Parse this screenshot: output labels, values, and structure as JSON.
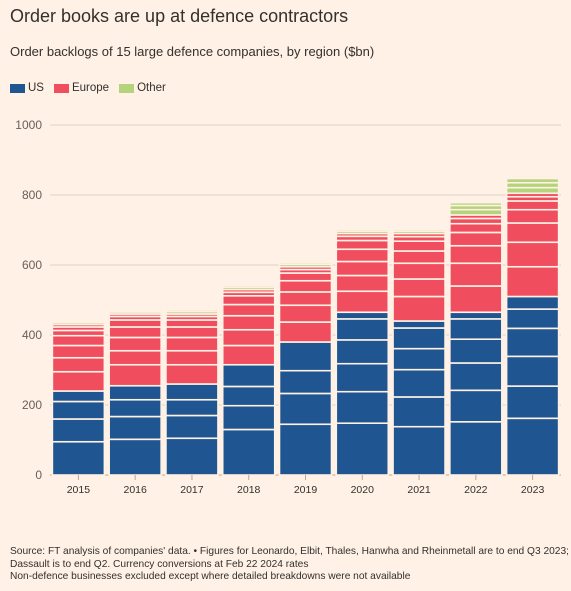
{
  "title": "Order books are up at defence contractors",
  "subtitle": "Order backlogs of 15 large defence companies, by region ($bn)",
  "legend": [
    {
      "label": "US",
      "color": "#1f5591"
    },
    {
      "label": "Europe",
      "color": "#f04e5e"
    },
    {
      "label": "Other",
      "color": "#b5d37a"
    }
  ],
  "source": {
    "line1": "Source: FT analysis of companies' data. • Figures for Leonardo, Elbit, Thales, Hanwha and Rheinmetall are to end Q3 2023;",
    "line2": "Dassault is to end Q2. Currency conversions at Feb 22 2024 rates",
    "line3": "Non-defence businesses excluded except where detailed breakdowns were not available"
  },
  "chart_data": {
    "type": "bar",
    "stacked": true,
    "title": "Order books are up at defence contractors",
    "subtitle": "Order backlogs of 15 large defence companies, by region ($bn)",
    "categories": [
      "2015",
      "2016",
      "2017",
      "2018",
      "2019",
      "2020",
      "2021",
      "2022",
      "2023"
    ],
    "ylim": [
      0,
      1000
    ],
    "yticks": [
      0,
      200,
      400,
      600,
      800,
      1000
    ],
    "legend_position": "top-left",
    "grid": true,
    "series": [
      {
        "name": "US",
        "color": "#1f5591",
        "values": [
          240,
          255,
          260,
          315,
          380,
          465,
          440,
          465,
          510
        ]
      },
      {
        "name": "Europe",
        "color": "#f04e5e",
        "values": [
          190,
          205,
          200,
          215,
          215,
          225,
          250,
          278,
          295
        ]
      },
      {
        "name": "Other",
        "color": "#b5d37a",
        "values": [
          10,
          10,
          12,
          12,
          12,
          12,
          12,
          35,
          42
        ]
      }
    ],
    "company_segments": [
      {
        "year": "2015",
        "US": [
          95,
          65,
          50,
          30
        ],
        "Europe": [
          55,
          40,
          35,
          28,
          15,
          10,
          7
        ],
        "Other": [
          6,
          4
        ]
      },
      {
        "year": "2016",
        "US": [
          102,
          65,
          48,
          40
        ],
        "Europe": [
          60,
          40,
          38,
          30,
          20,
          10,
          7
        ],
        "Other": [
          6,
          4
        ]
      },
      {
        "year": "2017",
        "US": [
          105,
          65,
          45,
          45
        ],
        "Europe": [
          55,
          40,
          38,
          30,
          20,
          10,
          7
        ],
        "Other": [
          7,
          5
        ]
      },
      {
        "year": "2018",
        "US": [
          130,
          68,
          55,
          62
        ],
        "Europe": [
          55,
          45,
          40,
          32,
          25,
          10,
          8
        ],
        "Other": [
          7,
          5
        ]
      },
      {
        "year": "2019",
        "US": [
          145,
          88,
          65,
          82,
          0
        ],
        "Europe": [
          57,
          48,
          38,
          32,
          22,
          10,
          8
        ],
        "Other": [
          7,
          5
        ]
      },
      {
        "year": "2020",
        "US": [
          148,
          90,
          80,
          68,
          60,
          19
        ],
        "Europe": [
          60,
          45,
          40,
          35,
          25,
          12,
          8
        ],
        "Other": [
          7,
          5
        ]
      },
      {
        "year": "2021",
        "US": [
          138,
          85,
          78,
          60,
          59,
          20
        ],
        "Europe": [
          70,
          50,
          45,
          35,
          28,
          13,
          9
        ],
        "Other": [
          7,
          5
        ]
      },
      {
        "year": "2022",
        "US": [
          152,
          90,
          78,
          68,
          58,
          19
        ],
        "Europe": [
          75,
          65,
          50,
          38,
          25,
          15,
          10
        ],
        "Other": [
          15,
          12,
          8
        ]
      },
      {
        "year": "2023",
        "US": [
          162,
          92,
          85,
          80,
          55,
          36
        ],
        "Europe": [
          85,
          70,
          55,
          38,
          25,
          12,
          10
        ],
        "Other": [
          16,
          14,
          12
        ]
      }
    ]
  }
}
